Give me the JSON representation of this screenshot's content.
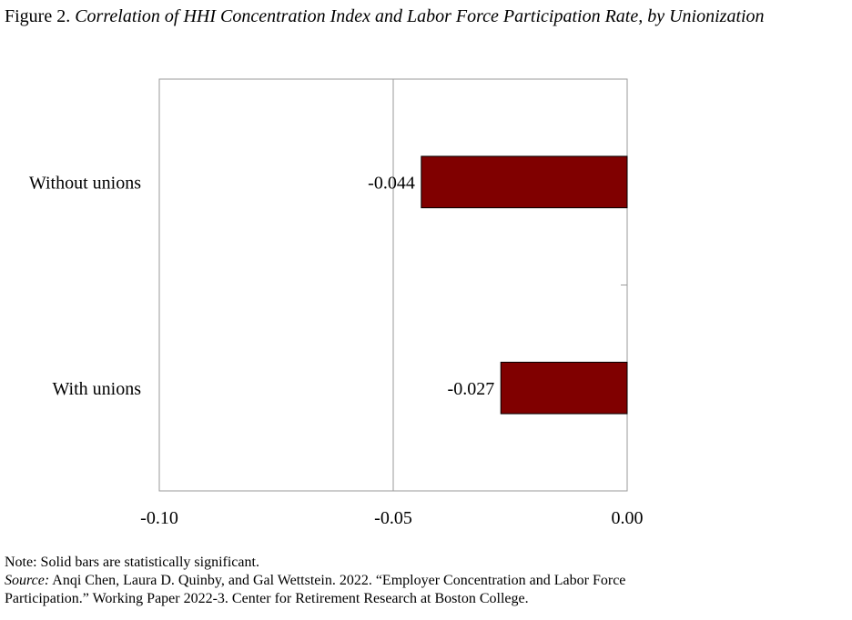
{
  "figure": {
    "label": "Figure 2.",
    "title": "Correlation of HHI Concentration Index and Labor Force Participation Rate, by Unionization"
  },
  "chart_data": {
    "type": "bar",
    "orientation": "horizontal",
    "categories": [
      "Without unions",
      "With unions"
    ],
    "values": [
      -0.044,
      -0.027
    ],
    "value_labels": [
      "-0.044",
      "-0.027"
    ],
    "xlim": [
      -0.1,
      0.0
    ],
    "xticks": [
      -0.1,
      -0.05,
      0.0
    ],
    "xtick_labels": [
      "-0.10",
      "-0.05",
      "0.00"
    ],
    "bar_color": "#800000",
    "grid": "vertical line at -0.05",
    "xlabel": "",
    "ylabel": ""
  },
  "notes": {
    "note": "Note: Solid bars are statistically significant.",
    "source_label": "Source:",
    "source_line1": " Anqi Chen, Laura D. Quinby, and Gal Wettstein. 2022. “Employer Concentration and Labor Force",
    "source_line2": "Participation.” Working Paper 2022-3. Center for Retirement Research at Boston College."
  }
}
